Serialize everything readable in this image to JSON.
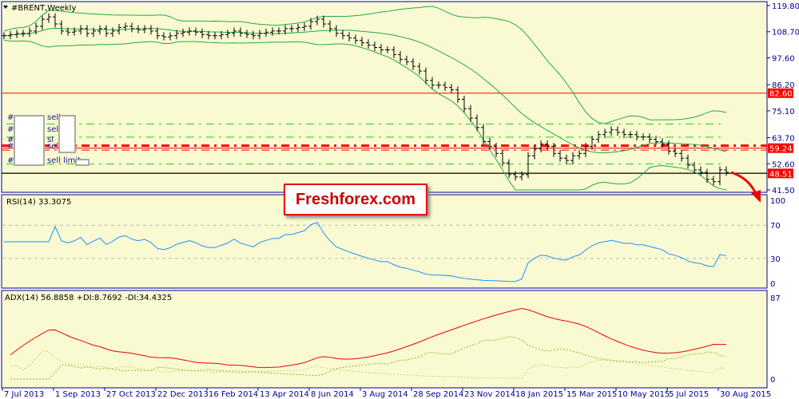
{
  "main": {
    "title": "#BRENT,Weekly",
    "order_labels": [
      "#",
      "#",
      "#",
      "#",
      "#"
    ],
    "order_types": [
      "sell",
      "sell",
      "sl",
      "sell",
      "sell limit"
    ]
  },
  "rsi": {
    "label": "RSI(14) 33.3075",
    "ticks": [
      "100",
      "70",
      "30",
      "0"
    ]
  },
  "adx": {
    "label": "ADX(14) 56.8858 +DI:8.7692 -DI:34.4325",
    "ticks": [
      "87",
      "0"
    ]
  },
  "banner": "Freshforex.com",
  "colors": {
    "background": "#fafad2",
    "bars": "#000000",
    "bollinger": "#22aa44",
    "rsi": "#1e90ff",
    "adx": "#ee0000",
    "plus_di": "#c8d878",
    "minus_di": "#88bb22",
    "level_red": "#ff0000",
    "level_green": "#22cc22"
  },
  "chart_data": {
    "type": "ohlc",
    "price_axis_ticks": [
      "119.80",
      "108.70",
      "97.60",
      "86.20",
      "75.10",
      "63.70",
      "52.60",
      "41.50"
    ],
    "ylim": [
      41.5,
      119.8
    ],
    "price_labels": [
      "82.60",
      "59.24",
      "48.51"
    ],
    "date_ticks": [
      "7 Jul 2013",
      "1 Sep 2013",
      "27 Oct 2013",
      "22 Dec 2013",
      "16 Feb 2014",
      "13 Apr 2014",
      "8 Jun 2014",
      "3 Aug 2014",
      "28 Sep 2014",
      "23 Nov 2014",
      "18 Jan 2015",
      "15 Mar 2015",
      "10 May 2015",
      "5 Jul 2015",
      "30 Aug 2015"
    ],
    "closes": [
      107,
      107.5,
      108,
      108,
      109,
      111,
      114,
      115,
      112,
      109,
      108.5,
      109,
      110,
      108,
      109,
      110,
      108,
      109,
      110.5,
      111,
      110,
      109.5,
      110,
      109,
      107,
      106.5,
      107,
      108,
      108.5,
      109,
      108.5,
      107.5,
      107,
      107,
      107.5,
      108,
      109,
      108,
      107.5,
      107,
      108,
      108.5,
      109,
      109,
      110,
      110,
      110.5,
      111,
      113,
      114,
      112,
      110,
      108,
      107,
      106,
      105,
      104,
      103,
      102,
      101,
      101,
      99,
      97,
      96,
      94,
      92,
      88,
      86,
      86,
      85,
      84,
      80,
      76,
      72,
      68,
      62,
      60,
      57,
      53,
      48,
      47,
      48,
      56,
      59,
      61,
      60,
      57,
      55,
      54,
      56,
      57,
      60,
      63,
      65,
      66,
      67,
      66,
      65,
      65,
      64,
      64,
      63,
      62,
      61,
      58,
      57,
      55,
      52,
      50,
      49,
      46,
      45,
      50,
      49
    ],
    "red_levels": [
      82.6,
      60.3,
      59.24,
      58.4,
      48.51
    ],
    "green_levels": [
      69.5,
      63.9,
      52.5
    ]
  }
}
